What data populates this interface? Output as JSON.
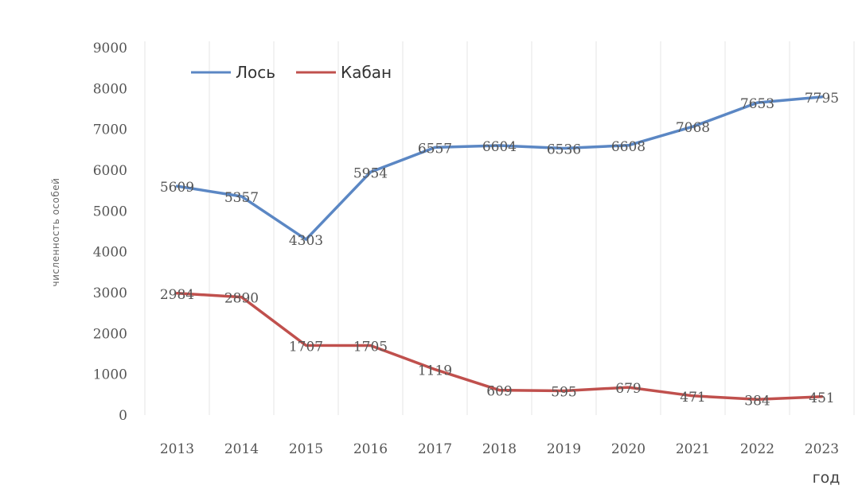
{
  "chart_data": {
    "type": "line",
    "title": "",
    "xlabel": "год",
    "ylabel": "численность особей",
    "categories": [
      "2013",
      "2014",
      "2015",
      "2016",
      "2017",
      "2018",
      "2019",
      "2020",
      "2021",
      "2022",
      "2023"
    ],
    "ylim": [
      0,
      9000
    ],
    "yticks": [
      0,
      1000,
      2000,
      3000,
      4000,
      5000,
      6000,
      7000,
      8000,
      9000
    ],
    "grid": "vertical",
    "legend_position": "top-left",
    "series": [
      {
        "name": "Лось",
        "color": "#5b87c4",
        "values": [
          5609,
          5357,
          4303,
          5954,
          6557,
          6604,
          6536,
          6608,
          7068,
          7653,
          7795
        ]
      },
      {
        "name": "Кабан",
        "color": "#c0504d",
        "values": [
          2984,
          2890,
          1707,
          1705,
          1119,
          609,
          595,
          679,
          471,
          384,
          451
        ]
      }
    ]
  }
}
